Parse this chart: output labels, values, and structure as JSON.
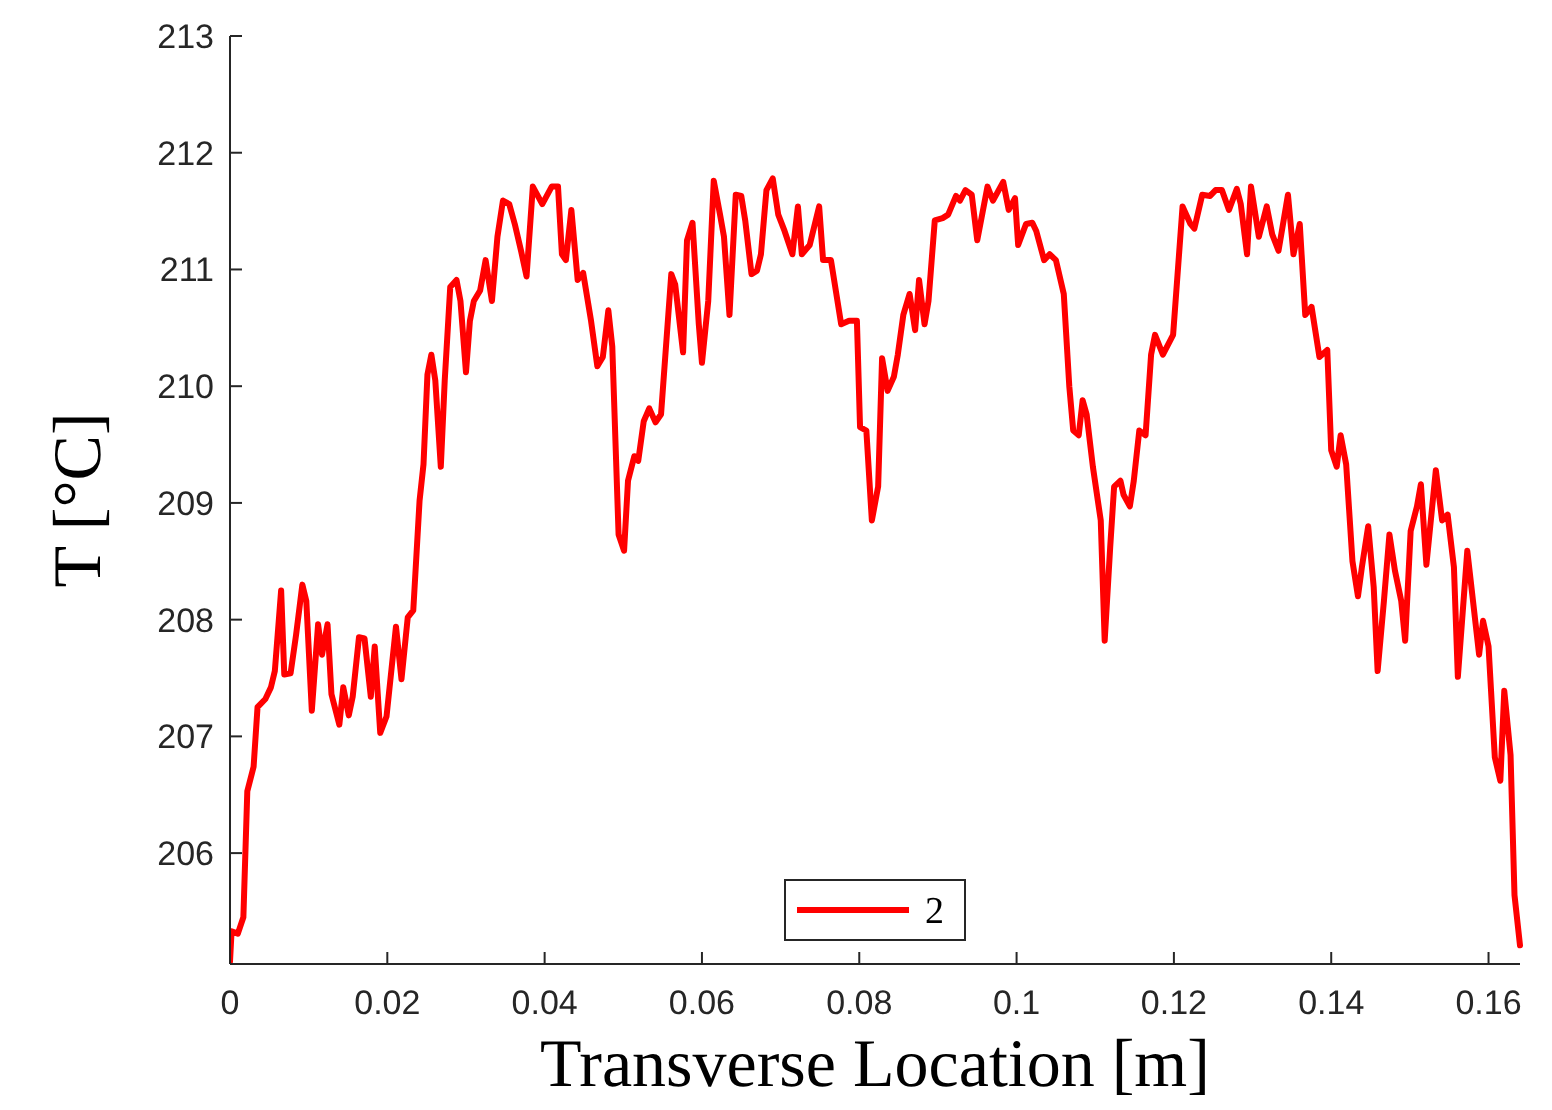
{
  "chart_data": {
    "type": "line",
    "xlabel": "Transverse Location [m]",
    "ylabel": "T [°C]",
    "xlim": [
      0,
      0.164
    ],
    "ylim": [
      205.05,
      213
    ],
    "xticks": [
      0,
      0.02,
      0.04,
      0.06,
      0.08,
      0.1,
      0.12,
      0.14,
      0.16
    ],
    "yticks": [
      206,
      207,
      208,
      209,
      210,
      211,
      212,
      213
    ],
    "grid": false,
    "legend": "bottom",
    "marker": "none",
    "line_style": "solid",
    "series": [
      {
        "name": "2",
        "color": "#ff0000",
        "x": [
          0,
          0.0002,
          0.001,
          0.0017,
          0.0022,
          0.003,
          0.0035,
          0.0045,
          0.0052,
          0.0057,
          0.0065,
          0.0069,
          0.0077,
          0.0084,
          0.0092,
          0.0097,
          0.0104,
          0.0112,
          0.0117,
          0.0124,
          0.0129,
          0.0139,
          0.0144,
          0.0151,
          0.0156,
          0.0164,
          0.0171,
          0.0179,
          0.0184,
          0.0191,
          0.0199,
          0.0211,
          0.0218,
          0.0226,
          0.0233,
          0.0241,
          0.0246,
          0.0251,
          0.0256,
          0.0261,
          0.0268,
          0.0273,
          0.028,
          0.0288,
          0.0293,
          0.03,
          0.0305,
          0.031,
          0.0318,
          0.0325,
          0.0333,
          0.034,
          0.0347,
          0.0355,
          0.0362,
          0.037,
          0.0377,
          0.0385,
          0.0397,
          0.0409,
          0.0417,
          0.0422,
          0.0427,
          0.0434,
          0.0442,
          0.0449,
          0.0459,
          0.0467,
          0.0474,
          0.0481,
          0.0486,
          0.0494,
          0.0501,
          0.0506,
          0.0514,
          0.0519,
          0.0526,
          0.0533,
          0.0541,
          0.0548,
          0.0561,
          0.0566,
          0.0576,
          0.0581,
          0.0588,
          0.0596,
          0.06,
          0.0608,
          0.0615,
          0.0623,
          0.0628,
          0.0635,
          0.0643,
          0.065,
          0.0655,
          0.0663,
          0.067,
          0.0675,
          0.0682,
          0.069,
          0.0697,
          0.0705,
          0.0715,
          0.0722,
          0.0727,
          0.0737,
          0.0749,
          0.0754,
          0.0764,
          0.0777,
          0.0787,
          0.0797,
          0.0801,
          0.0809,
          0.0816,
          0.0824,
          0.0829,
          0.0836,
          0.0844,
          0.0849,
          0.0856,
          0.0864,
          0.0871,
          0.0876,
          0.0883,
          0.0888,
          0.0896,
          0.0906,
          0.0913,
          0.0923,
          0.0928,
          0.0935,
          0.0943,
          0.095,
          0.0963,
          0.097,
          0.0983,
          0.099,
          0.0998,
          0.1002,
          0.1012,
          0.102,
          0.1025,
          0.1035,
          0.1042,
          0.105,
          0.106,
          0.1067,
          0.1072,
          0.1079,
          0.1084,
          0.1089,
          0.1097,
          0.1107,
          0.1112,
          0.1119,
          0.1124,
          0.1132,
          0.1136,
          0.1144,
          0.1149,
          0.1156,
          0.1164,
          0.1171,
          0.1176,
          0.1186,
          0.1199,
          0.1211,
          0.1221,
          0.1226,
          0.1236,
          0.1246,
          0.1253,
          0.1261,
          0.127,
          0.128,
          0.1285,
          0.1293,
          0.1298,
          0.1308,
          0.1318,
          0.1325,
          0.1333,
          0.1345,
          0.1352,
          0.136,
          0.1367,
          0.1375,
          0.1385,
          0.1395,
          0.14,
          0.1407,
          0.1412,
          0.1419,
          0.1427,
          0.1434,
          0.1439,
          0.1447,
          0.1454,
          0.1459,
          0.1467,
          0.1474,
          0.1481,
          0.1489,
          0.1494,
          0.1501,
          0.1509,
          0.1514,
          0.1521,
          0.1533,
          0.1541,
          0.1548,
          0.1556,
          0.1561,
          0.1573,
          0.1588,
          0.1593,
          0.16,
          0.1608,
          0.1615,
          0.162,
          0.1628,
          0.1633,
          0.164
        ],
        "values": [
          205.07,
          205.33,
          205.31,
          205.45,
          206.53,
          206.74,
          207.25,
          207.32,
          207.42,
          207.56,
          208.25,
          207.53,
          207.54,
          207.87,
          208.3,
          208.16,
          207.22,
          207.96,
          207.7,
          207.96,
          207.36,
          207.1,
          207.42,
          207.18,
          207.34,
          207.85,
          207.84,
          207.34,
          207.77,
          207.03,
          207.17,
          207.94,
          207.49,
          208.02,
          208.08,
          209.02,
          209.33,
          210.1,
          210.27,
          210.05,
          209.31,
          210.05,
          210.85,
          210.91,
          210.73,
          210.12,
          210.56,
          210.73,
          210.82,
          211.08,
          210.73,
          211.28,
          211.59,
          211.56,
          211.39,
          211.16,
          210.94,
          211.71,
          211.56,
          211.71,
          211.71,
          211.13,
          211.08,
          211.51,
          210.91,
          210.97,
          210.56,
          210.17,
          210.25,
          210.65,
          210.34,
          208.73,
          208.59,
          209.19,
          209.4,
          209.36,
          209.7,
          209.81,
          209.69,
          209.76,
          210.96,
          210.87,
          210.29,
          211.25,
          211.4,
          210.53,
          210.2,
          210.73,
          211.76,
          211.47,
          211.28,
          210.61,
          211.64,
          211.63,
          211.42,
          210.96,
          210.99,
          211.13,
          211.68,
          211.78,
          211.47,
          211.33,
          211.13,
          211.54,
          211.13,
          211.21,
          211.54,
          211.08,
          211.08,
          210.53,
          210.56,
          210.56,
          209.65,
          209.62,
          208.85,
          209.14,
          210.24,
          209.96,
          210.08,
          210.27,
          210.61,
          210.79,
          210.48,
          210.91,
          210.53,
          210.73,
          211.42,
          211.44,
          211.47,
          211.63,
          211.59,
          211.68,
          211.64,
          211.25,
          211.71,
          211.59,
          211.75,
          211.51,
          211.61,
          211.21,
          211.39,
          211.4,
          211.33,
          211.08,
          211.13,
          211.08,
          210.79,
          210.0,
          209.62,
          209.58,
          209.88,
          209.76,
          209.31,
          208.85,
          207.82,
          208.62,
          209.14,
          209.19,
          209.07,
          208.97,
          209.19,
          209.62,
          209.58,
          210.27,
          210.44,
          210.27,
          210.44,
          211.54,
          211.39,
          211.35,
          211.64,
          211.63,
          211.68,
          211.68,
          211.51,
          211.69,
          211.56,
          211.13,
          211.71,
          211.28,
          211.54,
          211.3,
          211.16,
          211.64,
          211.13,
          211.39,
          210.61,
          210.68,
          210.25,
          210.31,
          209.45,
          209.31,
          209.58,
          209.33,
          208.5,
          208.2,
          208.45,
          208.8,
          208.28,
          207.56,
          208.16,
          208.73,
          208.42,
          208.16,
          207.82,
          208.76,
          208.97,
          209.16,
          208.47,
          209.28,
          208.85,
          208.9,
          208.45,
          207.51,
          208.59,
          207.7,
          207.99,
          207.77,
          206.82,
          206.62,
          207.39,
          206.84,
          205.64,
          205.21
        ]
      }
    ]
  }
}
